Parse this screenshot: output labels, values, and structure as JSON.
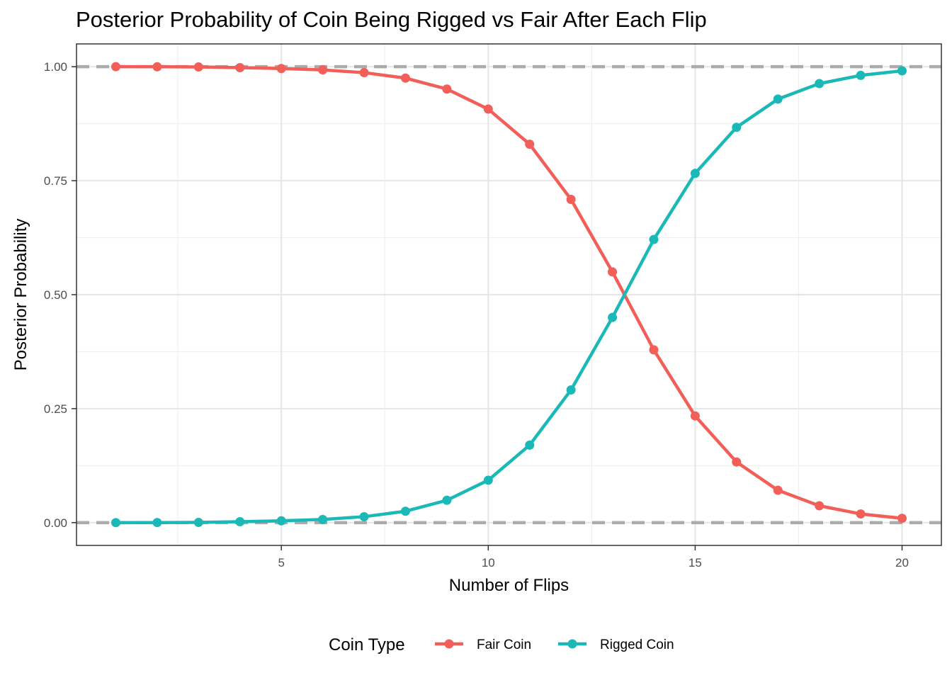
{
  "chart_data": {
    "type": "line",
    "title": "Posterior Probability of Coin Being Rigged vs Fair After Each Flip",
    "xlabel": "Number of Flips",
    "ylabel": "Posterior Probability",
    "xlim": [
      0.05,
      20.95
    ],
    "ylim": [
      -0.05,
      1.05
    ],
    "x_ticks": [
      5,
      10,
      15,
      20
    ],
    "x_tick_labels": [
      "5",
      "10",
      "15",
      "20"
    ],
    "y_ticks": [
      0,
      0.25,
      0.5,
      0.75,
      1.0
    ],
    "y_tick_labels": [
      "0.00",
      "0.25",
      "0.50",
      "0.75",
      "1.00"
    ],
    "grid": true,
    "reference_lines": [
      0,
      1
    ],
    "reference_line_color": "#ababab",
    "legend": {
      "title": "Coin Type",
      "placement": "bottom"
    },
    "x": [
      1,
      2,
      3,
      4,
      5,
      6,
      7,
      8,
      9,
      10,
      11,
      12,
      13,
      14,
      15,
      16,
      17,
      18,
      19,
      20
    ],
    "series": [
      {
        "name": "Fair Coin",
        "color": "#f25e58",
        "values": [
          1.0,
          0.9998,
          0.9995,
          0.998,
          0.996,
          0.993,
          0.987,
          0.975,
          0.951,
          0.907,
          0.83,
          0.709,
          0.55,
          0.379,
          0.234,
          0.133,
          0.071,
          0.037,
          0.019,
          0.0095
        ]
      },
      {
        "name": "Rigged Coin",
        "color": "#1bb8b8",
        "values": [
          0.0,
          0.0002,
          0.0005,
          0.002,
          0.004,
          0.007,
          0.013,
          0.025,
          0.049,
          0.093,
          0.17,
          0.291,
          0.45,
          0.621,
          0.766,
          0.867,
          0.929,
          0.963,
          0.981,
          0.991
        ]
      }
    ]
  }
}
